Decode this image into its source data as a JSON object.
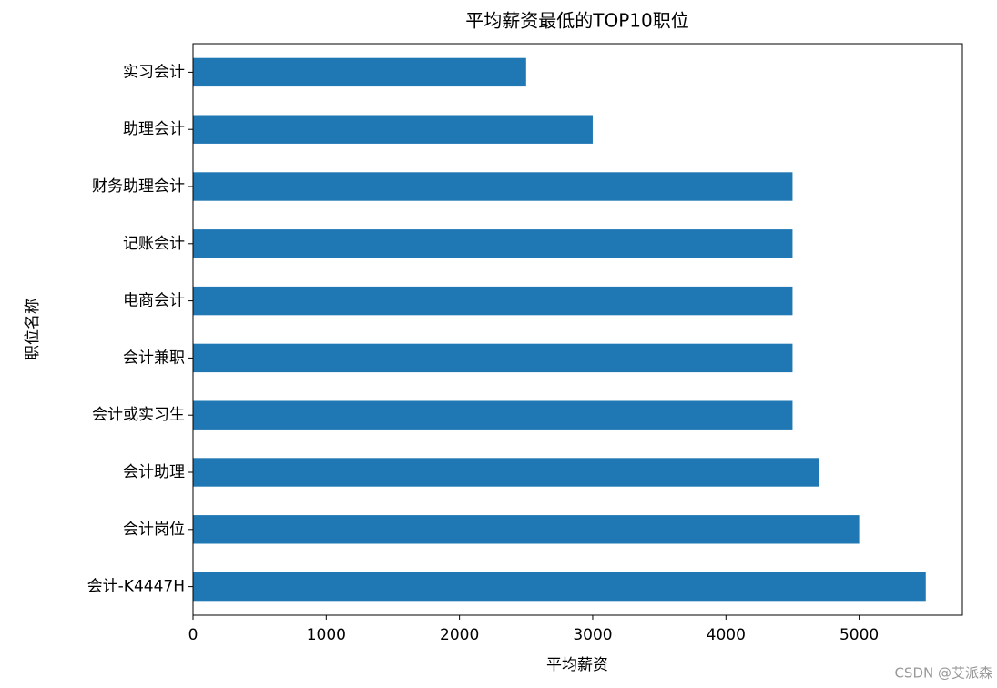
{
  "chart_data": {
    "type": "barh",
    "title": "平均薪资最低的TOP10职位",
    "x_label": "平均薪资",
    "y_label": "职位名称",
    "categories": [
      "实习会计",
      "助理会计",
      "财务助理会计",
      "记账会计",
      "电商会计",
      "会计兼职",
      "会计或实习生",
      "会计助理",
      "会计岗位",
      "会计-K4447H"
    ],
    "values": [
      2500,
      3000,
      4500,
      4500,
      4500,
      4500,
      4500,
      4700,
      5000,
      5500
    ],
    "color": "#1f77b4",
    "xlim": [
      0,
      5775
    ],
    "xticks": [
      0,
      1000,
      2000,
      3000,
      4000,
      5000
    ],
    "watermark": "CSDN @艾派森"
  }
}
